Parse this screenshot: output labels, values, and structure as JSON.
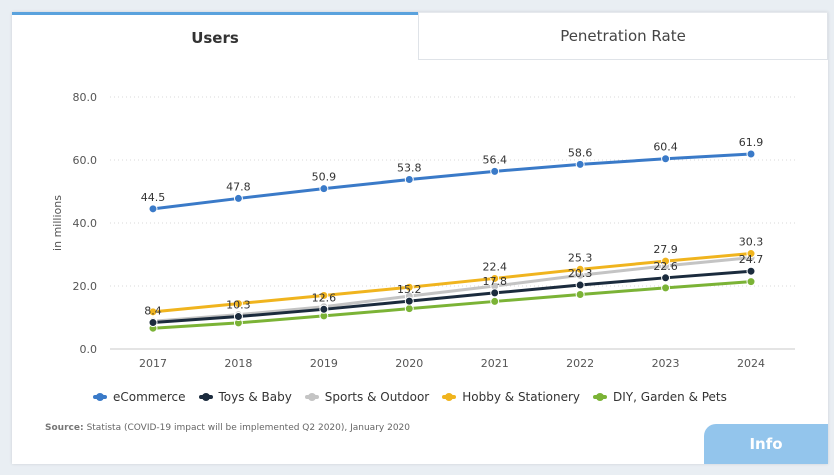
{
  "tabs": {
    "users": "Users",
    "penetration": "Penetration Rate"
  },
  "source": {
    "label": "Source:",
    "text": "Statista (COVID-19 impact will be implemented Q2 2020), January 2020"
  },
  "info_label": "Info",
  "chart_data": {
    "type": "line",
    "ylabel": "in millions",
    "ylim": [
      0,
      80
    ],
    "yticks": [
      "0.0",
      "20.0",
      "40.0",
      "60.0",
      "80.0"
    ],
    "categories": [
      "2017",
      "2018",
      "2019",
      "2020",
      "2021",
      "2022",
      "2023",
      "2024"
    ],
    "grid": true,
    "legend_position": "bottom",
    "series": [
      {
        "name": "eCommerce",
        "color": "#3a7ac8",
        "values": [
          44.5,
          47.8,
          50.9,
          53.8,
          56.4,
          58.6,
          60.4,
          61.9
        ],
        "labels": [
          "44.5",
          "47.8",
          "50.9",
          "53.8",
          "56.4",
          "58.6",
          "60.4",
          "61.9"
        ]
      },
      {
        "name": "Toys & Baby",
        "color": "#1b2b3d",
        "values": [
          8.4,
          10.3,
          12.6,
          15.2,
          17.8,
          20.3,
          22.6,
          24.7
        ],
        "labels": [
          "8.4",
          "10.3",
          "12.6",
          "15.2",
          "17.8",
          "20.3",
          "22.6",
          "24.7"
        ]
      },
      {
        "name": "Sports & Outdoor",
        "color": "#c4c4c4",
        "values": [
          8.8,
          10.9,
          13.4,
          16.8,
          20.0,
          23.4,
          26.4,
          29.0
        ],
        "labels": [
          "",
          "",
          "",
          "",
          "",
          "",
          "",
          ""
        ]
      },
      {
        "name": "Hobby & Stationery",
        "color": "#f0b41e",
        "values": [
          11.8,
          14.4,
          17.0,
          19.6,
          22.4,
          25.3,
          27.9,
          30.3
        ],
        "labels": [
          "",
          "",
          "",
          "",
          "22.4",
          "25.3",
          "27.9",
          "30.3"
        ]
      },
      {
        "name": "DIY, Garden & Pets",
        "color": "#7bb336",
        "values": [
          6.6,
          8.3,
          10.5,
          12.8,
          15.1,
          17.3,
          19.4,
          21.4
        ],
        "labels": [
          "",
          "",
          "",
          "",
          "",
          "",
          "",
          ""
        ]
      }
    ]
  }
}
